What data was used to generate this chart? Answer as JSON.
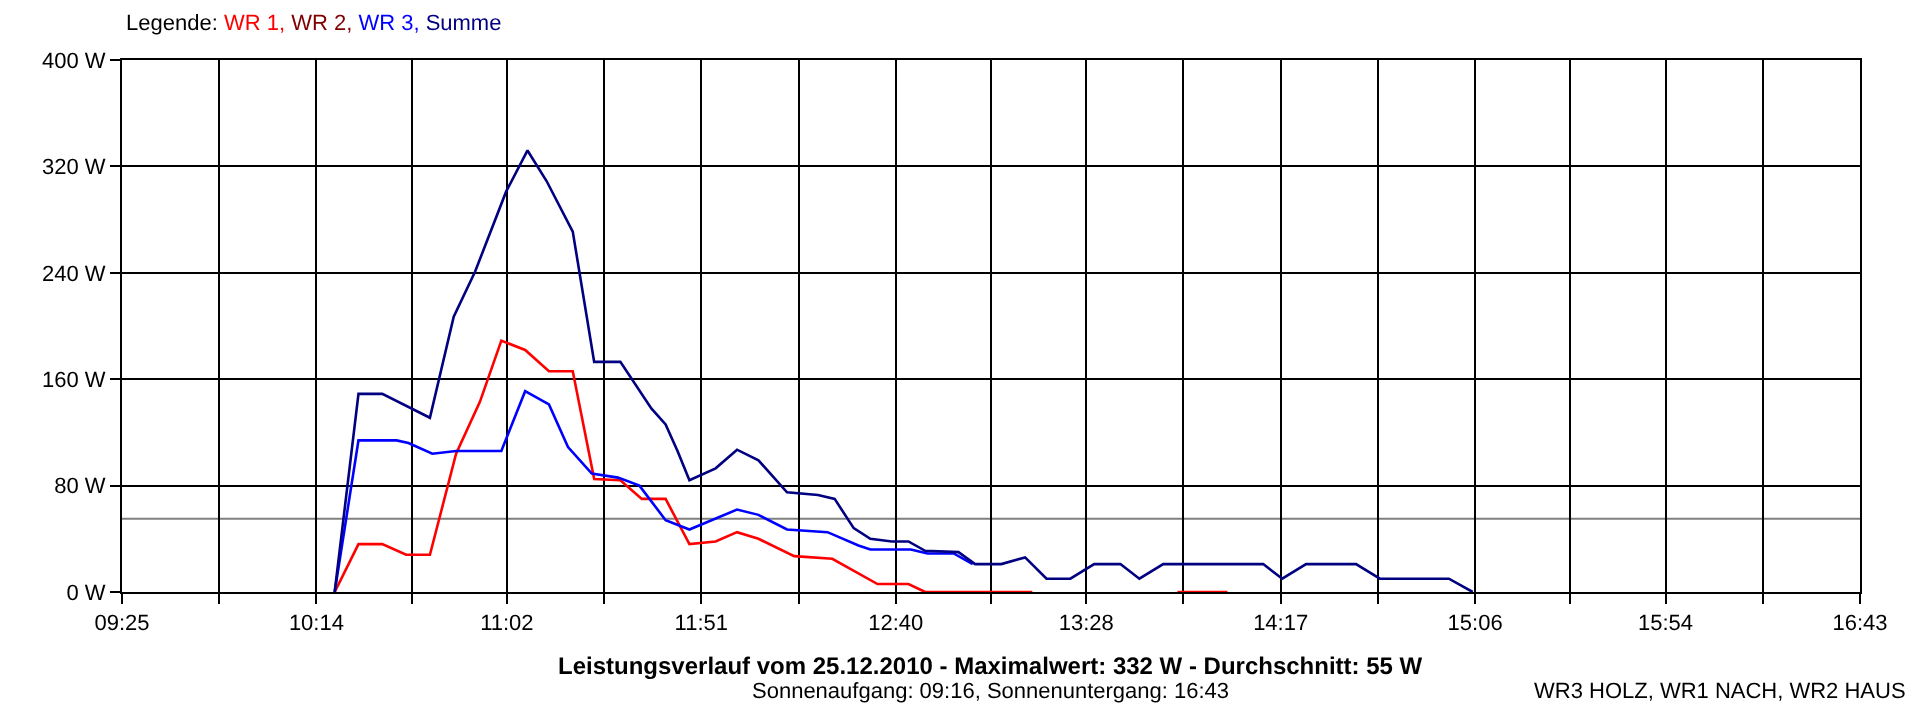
{
  "chart_data": {
    "type": "line",
    "title": "Leistungsverlauf vom 25.12.2010 - Maximalwert: 332 W - Durchschnitt: 55 W",
    "subtitle": "Sonnenaufgang: 09:16, Sonnenuntergang: 16:43",
    "annotations": [
      "WR3 HOLZ, WR1 NACH, WR2 HAUS"
    ],
    "legend_title": "Legende:",
    "legend": "top left",
    "grid": true,
    "line_style": "solid",
    "xlim": [
      9.4167,
      16.7167
    ],
    "xticks": [
      {
        "value": 9.4167,
        "label": "09:25"
      },
      {
        "value": 9.8222,
        "label": null
      },
      {
        "value": 10.2333,
        "label": "10:14"
      },
      {
        "value": 10.6333,
        "label": null
      },
      {
        "value": 11.0333,
        "label": "11:02"
      },
      {
        "value": 11.4417,
        "label": null
      },
      {
        "value": 11.85,
        "label": "11:51"
      },
      {
        "value": 12.2583,
        "label": null
      },
      {
        "value": 12.6667,
        "label": "12:40"
      },
      {
        "value": 13.0667,
        "label": null
      },
      {
        "value": 13.4667,
        "label": "13:28"
      },
      {
        "value": 13.875,
        "label": null
      },
      {
        "value": 14.2833,
        "label": "14:17"
      },
      {
        "value": 14.6917,
        "label": null
      },
      {
        "value": 15.1,
        "label": "15:06"
      },
      {
        "value": 15.5,
        "label": null
      },
      {
        "value": 15.9,
        "label": "15:54"
      },
      {
        "value": 16.3083,
        "label": null
      },
      {
        "value": 16.7167,
        "label": "16:43"
      }
    ],
    "ylim": [
      0,
      400
    ],
    "yticks": [
      {
        "value": 0,
        "label": "0 W"
      },
      {
        "value": 80,
        "label": "80 W"
      },
      {
        "value": 160,
        "label": "160 W"
      },
      {
        "value": 240,
        "label": "240 W"
      },
      {
        "value": 320,
        "label": "320 W"
      },
      {
        "value": 400,
        "label": "400 W"
      }
    ],
    "ref_lines": [
      {
        "axis": "y",
        "value": 55,
        "label": null,
        "color": "#808080"
      }
    ],
    "series": [
      {
        "name": "WR 1,",
        "color": "#ff0000",
        "x": [
          10.31,
          10.41,
          10.51,
          10.61,
          10.71,
          10.82,
          10.92,
          11.01,
          11.11,
          11.21,
          11.31,
          11.4,
          11.51,
          11.6,
          11.7,
          11.8,
          11.91,
          12.0,
          12.09,
          12.24,
          12.4,
          12.59,
          12.72,
          12.79,
          13.24,
          13.5,
          13.85,
          14.06
        ],
        "values": [
          0,
          36,
          36,
          28,
          28,
          104,
          143,
          189,
          182,
          166,
          166,
          85,
          84,
          70,
          70,
          36,
          38,
          45,
          40,
          27,
          25,
          6,
          6,
          0,
          0,
          null,
          0,
          0
        ]
      },
      {
        "name": "WR 2,",
        "color": "#800000"
      },
      {
        "name": "WR 3,",
        "color": "#0000ff",
        "x": [
          10.31,
          10.41,
          10.57,
          10.62,
          10.72,
          10.82,
          11.01,
          11.11,
          11.21,
          11.29,
          11.39,
          11.5,
          11.59,
          11.7,
          11.8,
          12.0,
          12.09,
          12.21,
          12.38,
          12.51,
          12.56,
          12.73,
          12.8,
          12.91,
          12.99
        ],
        "values": [
          0,
          114,
          114,
          112,
          104,
          106,
          106,
          151,
          141,
          109,
          89,
          86,
          80,
          54,
          47,
          62,
          58,
          47,
          45,
          35,
          32,
          32,
          29,
          29,
          21
        ]
      },
      {
        "name": "Summe",
        "color": "#000080",
        "x": [
          10.31,
          10.41,
          10.51,
          10.71,
          10.81,
          10.9,
          11.03,
          11.12,
          11.2,
          11.31,
          11.4,
          11.51,
          11.64,
          11.7,
          11.75,
          11.8,
          11.91,
          12.0,
          12.09,
          12.21,
          12.34,
          12.41,
          12.49,
          12.56,
          12.65,
          12.72,
          12.79,
          12.93,
          13.0,
          13.11,
          13.21,
          13.3,
          13.4,
          13.5,
          13.61,
          13.69,
          13.79,
          14.21,
          14.29,
          14.39,
          14.6,
          14.7,
          14.99,
          15.09
        ],
        "values": [
          0,
          149,
          149,
          131,
          207,
          241,
          301,
          332,
          309,
          271,
          173,
          173,
          138,
          126,
          106,
          84,
          93,
          107,
          99,
          75,
          73,
          70,
          48,
          40,
          38,
          38,
          31,
          30,
          21,
          21,
          26,
          10,
          10,
          21,
          21,
          10,
          21,
          21,
          10,
          21,
          21,
          10,
          10,
          0
        ]
      }
    ]
  }
}
